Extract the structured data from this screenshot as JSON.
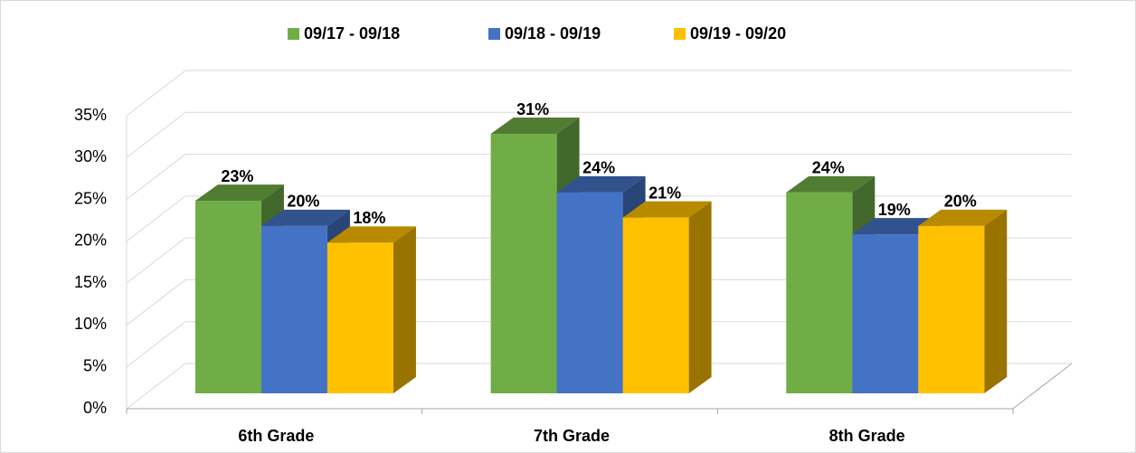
{
  "chart_data": {
    "type": "bar3d",
    "categories": [
      "6th Grade",
      "7th Grade",
      "8th Grade"
    ],
    "series": [
      {
        "name": "09/17 - 09/18",
        "color": "#70ad47",
        "values": [
          23,
          31,
          24
        ],
        "value_labels": [
          "23%",
          "31%",
          "24%"
        ]
      },
      {
        "name": "09/18 - 09/19",
        "color": "#4472c4",
        "values": [
          20,
          24,
          19
        ],
        "value_labels": [
          "20%",
          "24%",
          "19%"
        ]
      },
      {
        "name": "09/19 - 09/20",
        "color": "#ffc000",
        "values": [
          18,
          21,
          20
        ],
        "value_labels": [
          "18%",
          "21%",
          "20%"
        ]
      }
    ],
    "ylim": [
      0,
      35
    ],
    "yticks": [
      {
        "value": 0,
        "label": "0%"
      },
      {
        "value": 5,
        "label": "5%"
      },
      {
        "value": 10,
        "label": "10%"
      },
      {
        "value": 15,
        "label": "15%"
      },
      {
        "value": 20,
        "label": "20%"
      },
      {
        "value": 25,
        "label": "25%"
      },
      {
        "value": 30,
        "label": "30%"
      },
      {
        "value": 35,
        "label": "35%"
      }
    ],
    "grid": true,
    "legend": "top"
  }
}
